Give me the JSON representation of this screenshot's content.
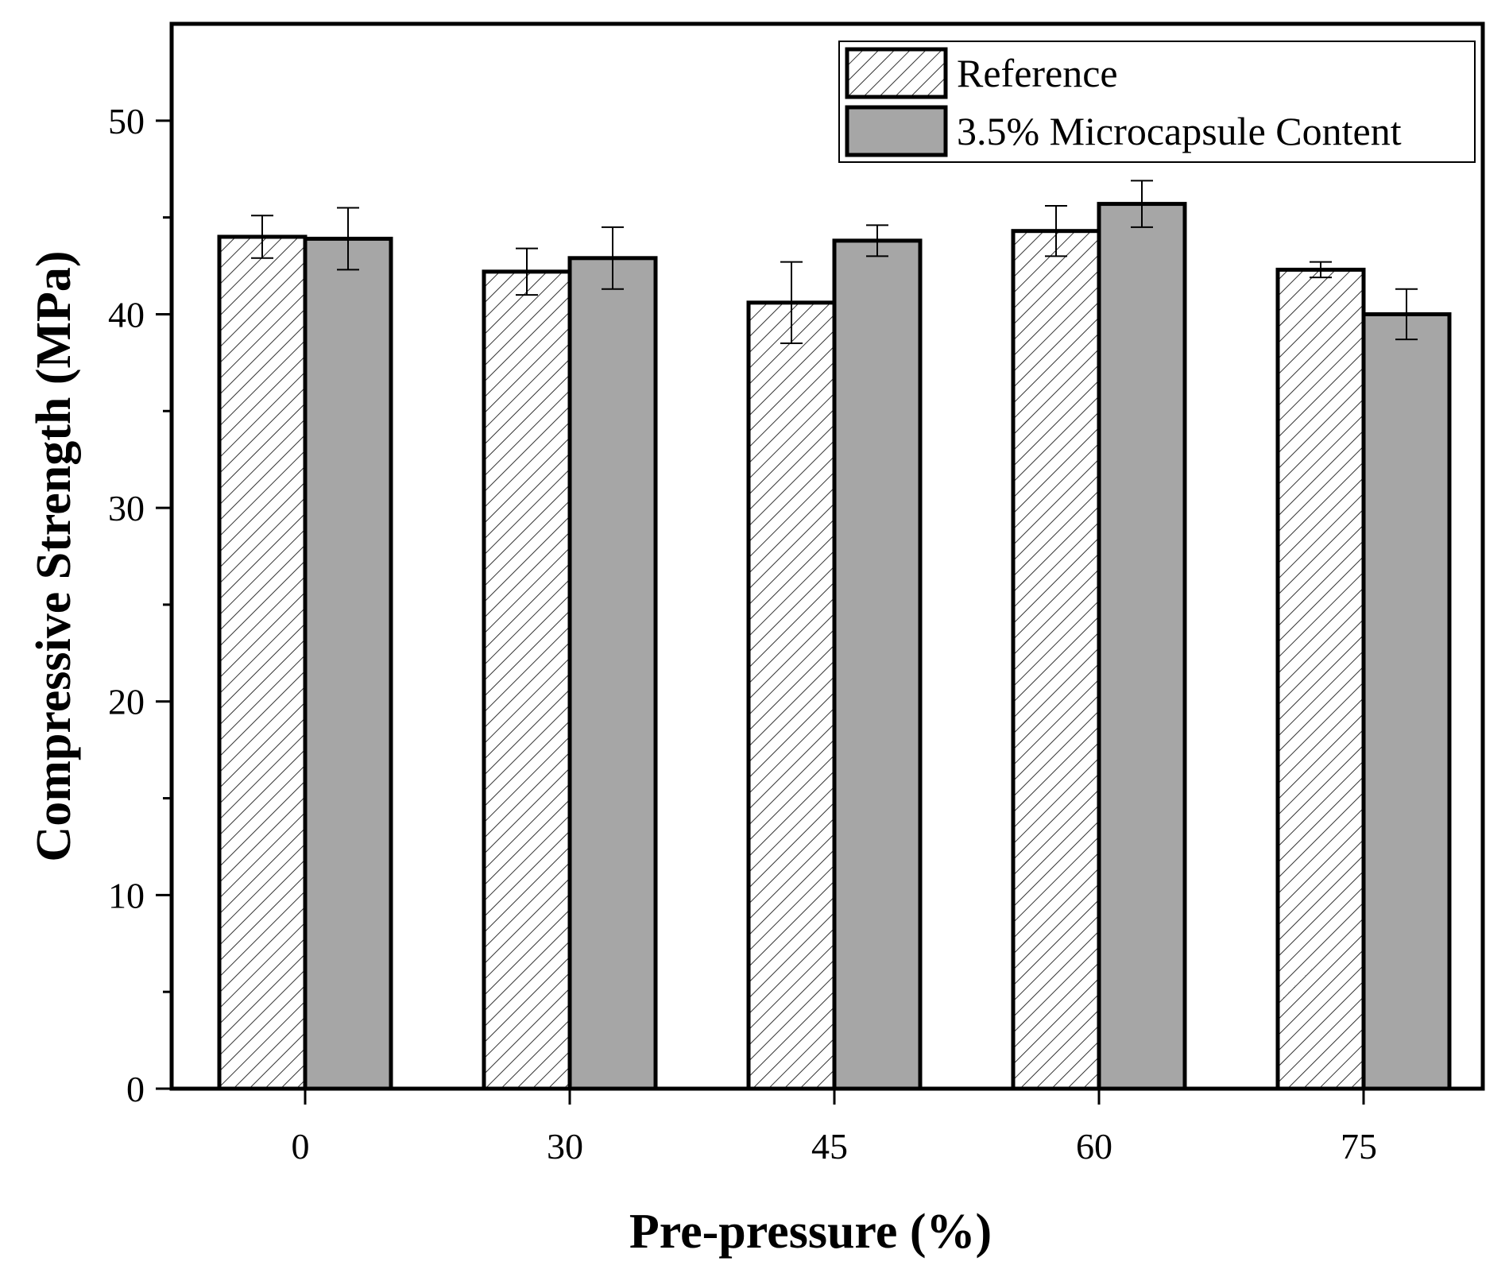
{
  "chart_data": {
    "type": "bar",
    "title": "",
    "xlabel": "Pre-pressure (%)",
    "ylabel": "Compressive Strength (MPa)",
    "categories": [
      "0",
      "30",
      "45",
      "60",
      "75"
    ],
    "ylim": [
      0,
      55
    ],
    "yticks": [
      "0",
      "10",
      "20",
      "30",
      "40",
      "50"
    ],
    "series": [
      {
        "name": "Reference",
        "values": [
          44.0,
          42.2,
          40.6,
          44.3,
          42.3
        ],
        "errors": [
          1.1,
          1.2,
          2.1,
          1.3,
          0.4
        ],
        "fill": "hatched",
        "color": "#ffffff"
      },
      {
        "name": "3.5% Microcapsule Content",
        "values": [
          43.9,
          42.9,
          43.8,
          45.7,
          40.0
        ],
        "errors": [
          1.6,
          1.6,
          0.8,
          1.2,
          1.3
        ],
        "fill": "solid",
        "color": "#a6a6a6"
      }
    ],
    "legend_position": "top-right",
    "grid": false
  }
}
